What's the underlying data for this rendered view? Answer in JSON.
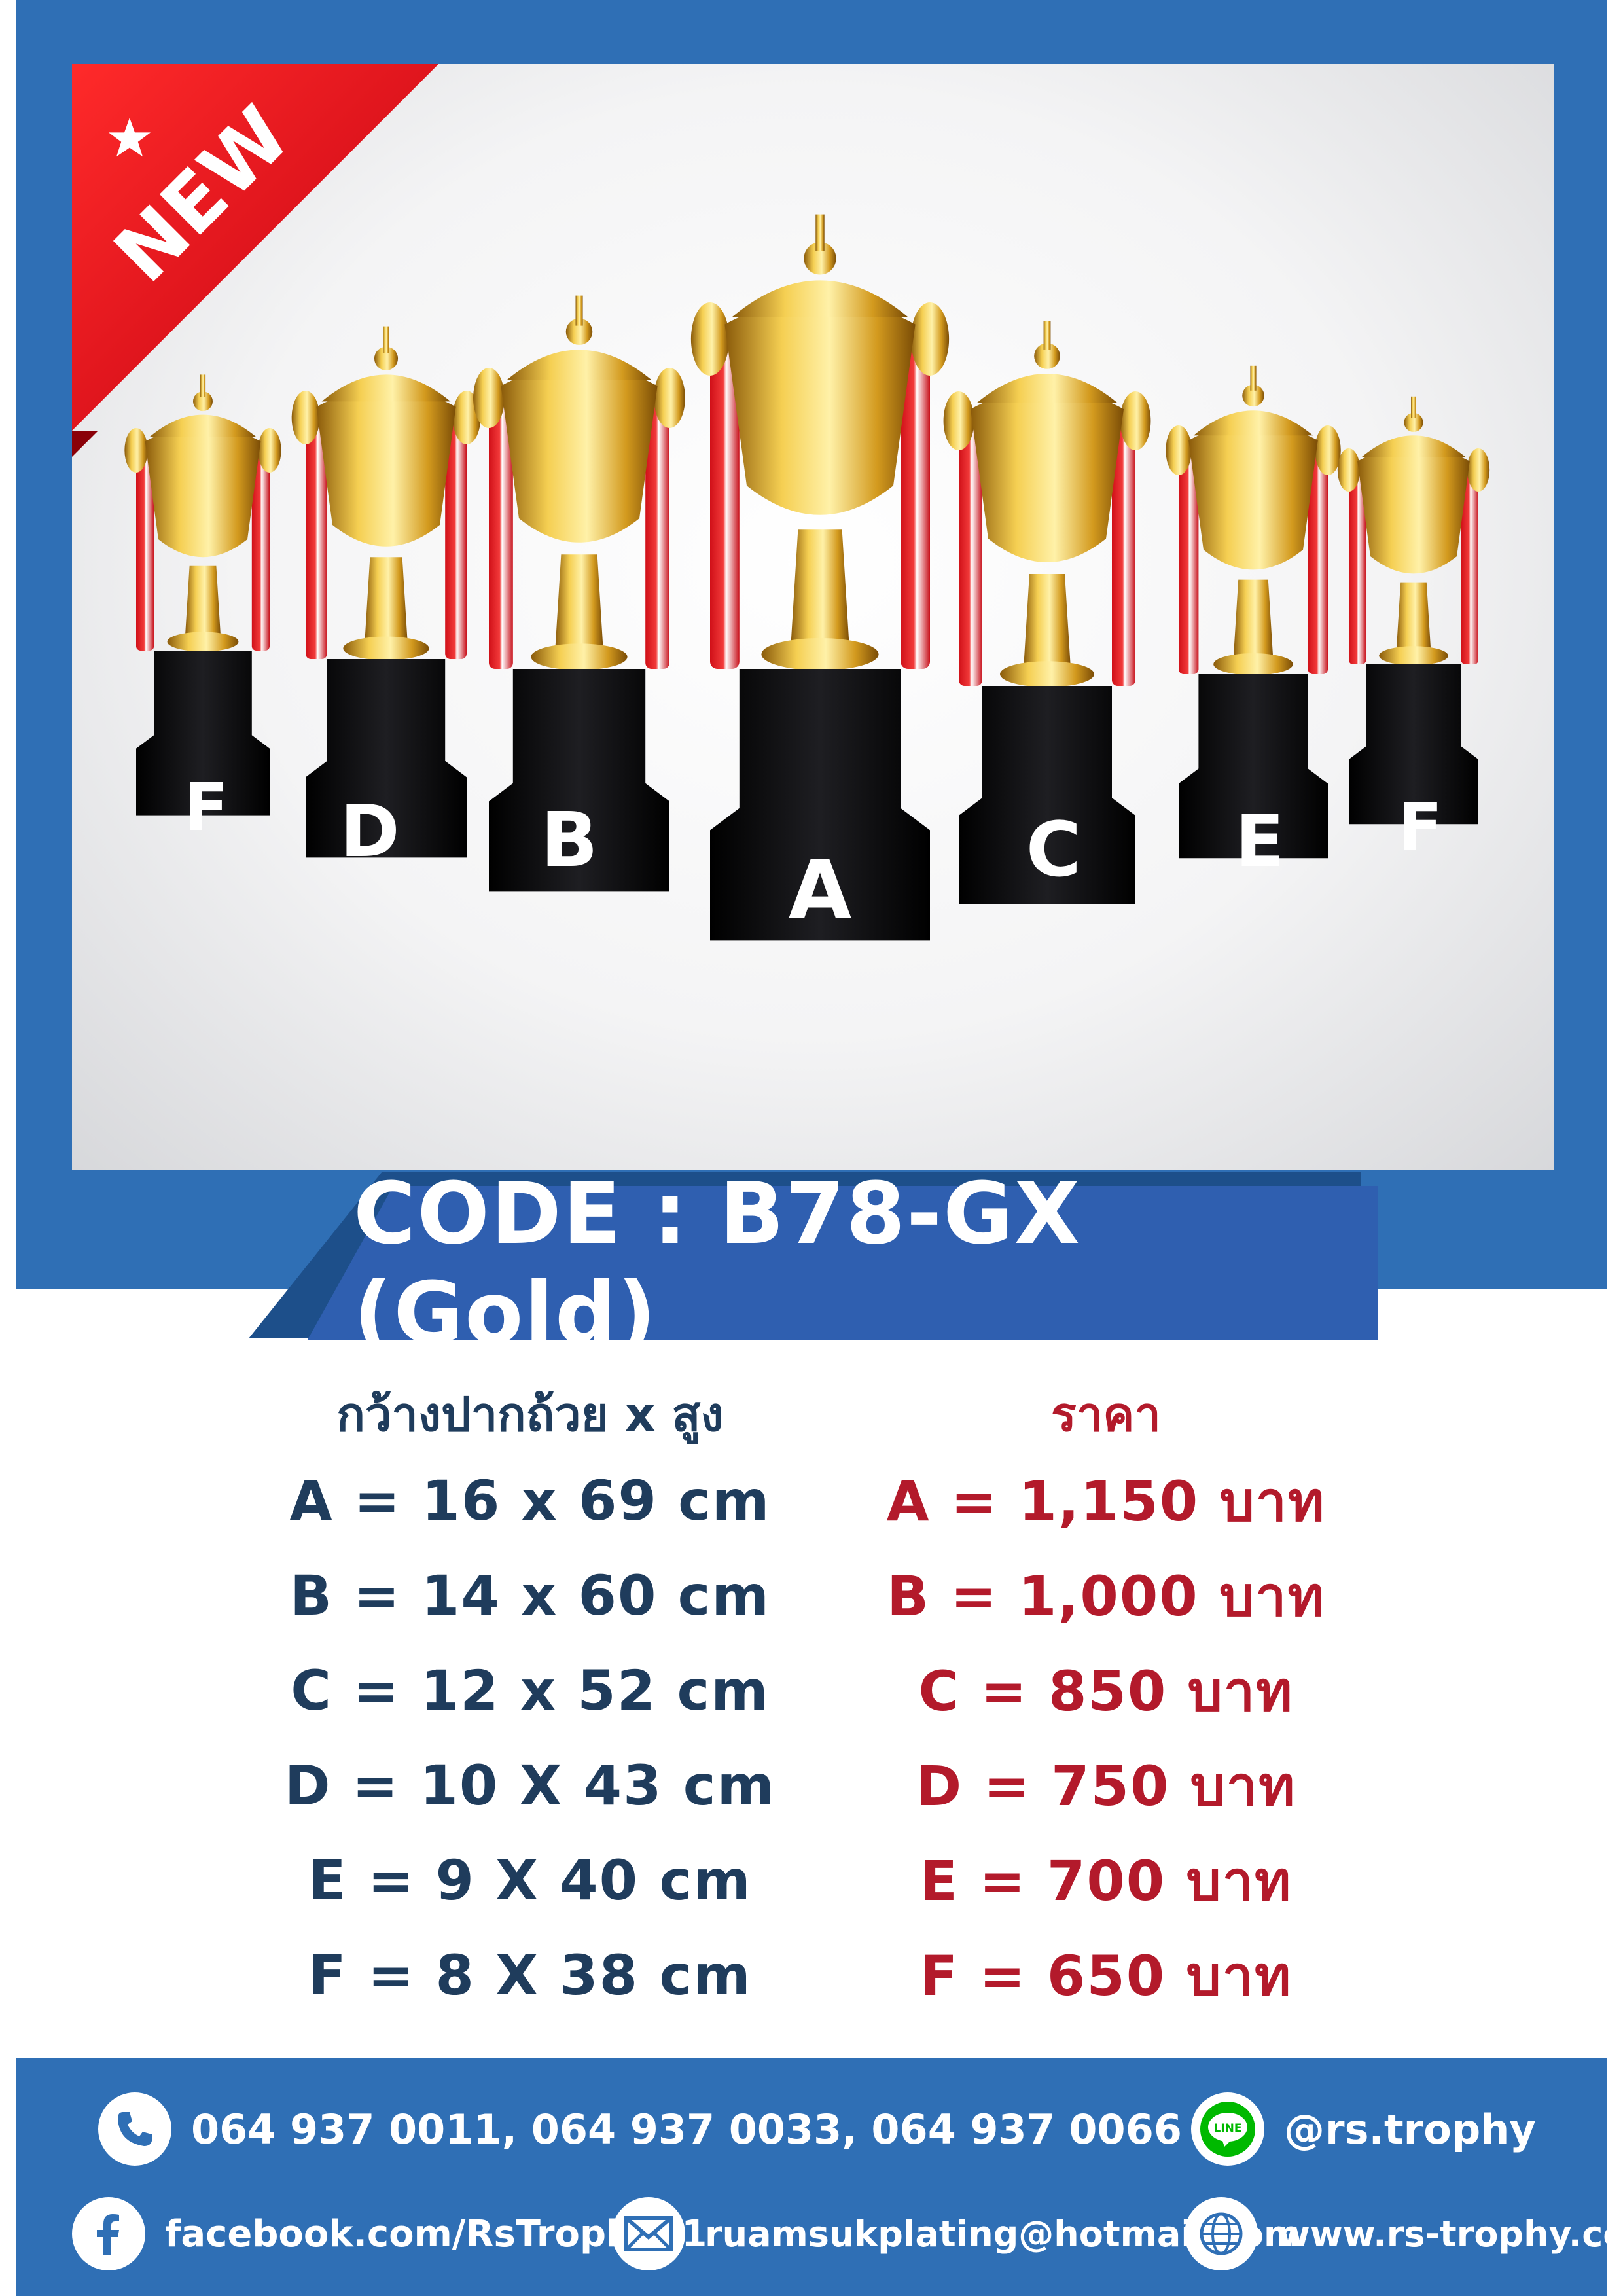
{
  "badge": {
    "label": "NEW"
  },
  "trophies": [
    {
      "letter": "F"
    },
    {
      "letter": "D"
    },
    {
      "letter": "B"
    },
    {
      "letter": "A"
    },
    {
      "letter": "C"
    },
    {
      "letter": "E"
    },
    {
      "letter": "F"
    }
  ],
  "code_label": "CODE : B78-GX (Gold)",
  "specs": {
    "header": "กว้างปากถ้วย x สูง",
    "rows": [
      "A = 16 x 69 cm",
      "B = 14 x 60 cm",
      "C = 12 x 52 cm",
      "D = 10 X 43 cm",
      "E = 9 X 40 cm",
      "F = 8 X 38 cm"
    ]
  },
  "prices": {
    "header": "ราคา",
    "rows": [
      "A = 1,150 บาท",
      "B = 1,000 บาท",
      "C = 850 บาท",
      "D = 750 บาท",
      "E = 700 บาท",
      "F = 650 บาท"
    ]
  },
  "contact": {
    "phones": "064 937 0011, 064 937 0033, 064 937 0066",
    "line": "@rs.trophy",
    "facebook": "facebook.com/RsTrophy01",
    "email": "ruamsukplating@hotmail.com",
    "website": "www.rs-trophy.com"
  },
  "colors": {
    "brand_blue": "#2f6fb5",
    "code_bar": "#2f5fb0",
    "spec_text": "#1f3c5c",
    "price_text": "#b31a2b",
    "ribbon_red": "#e3131e",
    "line_green": "#00b900"
  }
}
